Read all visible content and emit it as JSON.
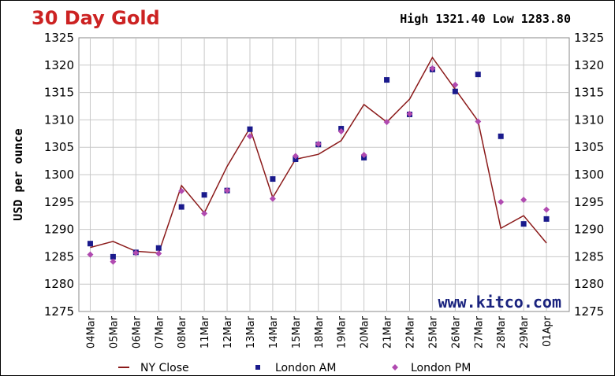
{
  "chart_data": {
    "type": "line",
    "title": "30 Day Gold",
    "high_low": "High 1321.40 Low 1283.80",
    "ylabel": "USD per ounce",
    "watermark": "www.kitco.com",
    "ylim": [
      1275,
      1325
    ],
    "yticks": [
      1325,
      1320,
      1315,
      1310,
      1305,
      1300,
      1295,
      1290,
      1285,
      1280,
      1275
    ],
    "grid": true,
    "legend_position": "bottom",
    "categories": [
      "04Mar",
      "05Mar",
      "06Mar",
      "07Mar",
      "08Mar",
      "11Mar",
      "12Mar",
      "13Mar",
      "14Mar",
      "15Mar",
      "18Mar",
      "19Mar",
      "20Mar",
      "21Mar",
      "22Mar",
      "25Mar",
      "26Mar",
      "27Mar",
      "28Mar",
      "29Mar",
      "01Apr"
    ],
    "series": [
      {
        "name": "NY Close",
        "style": "line",
        "color": "#8b1a1a",
        "values": [
          null,
          1287.8,
          1286.0,
          1285.7,
          1298.0,
          1293.0,
          1301.5,
          1308.5,
          1295.8,
          1302.8,
          1303.7,
          1306.2,
          1312.8,
          1309.6,
          1313.8,
          1321.4,
          1315.6,
          1309.8,
          1290.2,
          1292.5,
          1287.5
        ]
      },
      {
        "name": "London AM",
        "style": "square",
        "color": "#1a1a8c",
        "values": [
          1287.4,
          1285.0,
          1285.8,
          1286.6,
          1294.1,
          1296.3,
          1297.1,
          1308.3,
          1299.2,
          1302.8,
          1305.5,
          1308.4,
          1303.1,
          1317.3,
          1311.0,
          1319.2,
          1315.2,
          1318.3,
          1307.0,
          1291.0,
          1291.9
        ]
      },
      {
        "name": "London PM",
        "style": "diamond",
        "color": "#b04ab0",
        "values": [
          1285.4,
          1284.1,
          1285.7,
          1285.6,
          1297.0,
          1292.9,
          1297.1,
          1307.0,
          1295.6,
          1303.4,
          1305.6,
          1307.9,
          1303.6,
          1309.6,
          1311.1,
          1319.4,
          1316.4,
          1309.7,
          1295.0,
          1295.4,
          1293.6
        ]
      }
    ],
    "nyclose_start": 1286.7
  }
}
